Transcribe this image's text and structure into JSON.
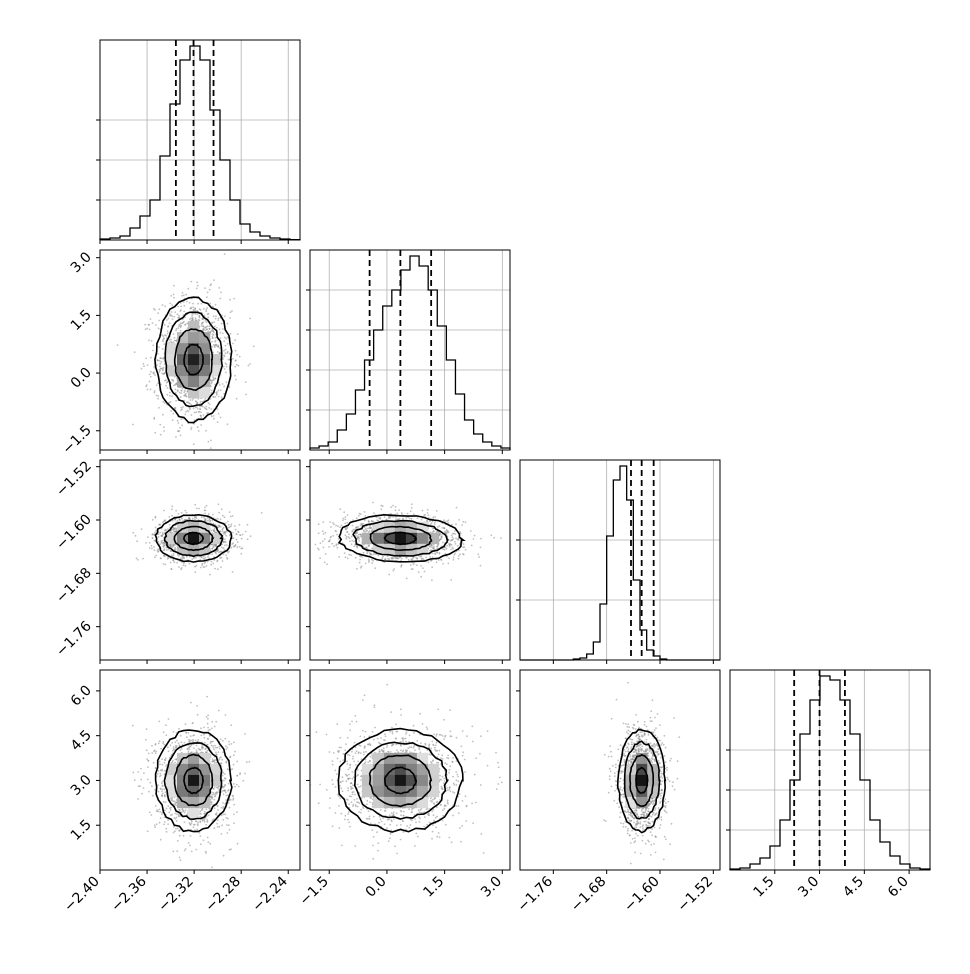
{
  "chart_data": {
    "type": "corner",
    "parameters": [
      {
        "index": 0,
        "range": [
          -2.4,
          -2.23
        ],
        "ticks": [
          -2.4,
          -2.36,
          -2.32,
          -2.28,
          -2.24
        ],
        "tick_labels": [
          "−2.40",
          "−2.36",
          "−2.32",
          "−2.28",
          "−2.24"
        ],
        "quantiles": [
          -2.3355,
          -2.3205,
          -2.3035
        ],
        "hist": [
          0.5,
          1,
          2,
          6,
          12,
          20,
          42,
          68,
          90,
          97,
          90,
          65,
          40,
          20,
          8,
          4,
          2,
          1,
          0.5,
          0.2
        ],
        "hist_ticks": [
          20,
          40,
          60
        ]
      },
      {
        "index": 1,
        "range": [
          -2.0,
          3.2
        ],
        "ticks": [
          -1.5,
          0.0,
          1.5,
          3.0
        ],
        "tick_labels": [
          "−1.5",
          "0.0",
          "1.5",
          "3.0"
        ],
        "quantiles": [
          -0.45,
          0.35,
          1.15
        ],
        "hist": [
          1,
          2,
          4,
          10,
          18,
          30,
          45,
          60,
          72,
          80,
          90,
          97,
          92,
          80,
          62,
          45,
          28,
          15,
          8,
          4,
          2,
          1
        ],
        "hist_ticks": [
          20,
          40,
          60,
          80
        ]
      },
      {
        "index": 2,
        "range": [
          -1.81,
          -1.51
        ],
        "ticks": [
          -1.76,
          -1.68,
          -1.6,
          -1.52
        ],
        "tick_labels": [
          "−1.76",
          "−1.68",
          "−1.60",
          "−1.52"
        ],
        "quantiles": [
          -1.6435,
          -1.6275,
          -1.6095
        ],
        "hist": [
          0,
          0,
          0,
          0,
          0,
          0,
          0,
          0,
          0.5,
          1,
          3,
          9,
          28,
          62,
          90,
          97,
          80,
          40,
          15,
          5,
          2,
          0.5,
          0,
          0,
          0,
          0,
          0,
          0,
          0,
          0
        ],
        "hist_ticks": [
          30,
          60
        ]
      },
      {
        "index": 3,
        "range": [
          0.0,
          6.7
        ],
        "ticks": [
          1.5,
          3.0,
          4.5,
          6.0
        ],
        "tick_labels": [
          "1.5",
          "3.0",
          "4.5",
          "6.0"
        ],
        "quantiles": [
          2.15,
          3.0,
          3.85
        ],
        "hist": [
          0.5,
          1,
          3,
          6,
          12,
          25,
          45,
          68,
          85,
          97,
          95,
          85,
          68,
          45,
          25,
          14,
          7,
          3,
          1,
          0.5
        ],
        "hist_ticks": [
          20,
          40,
          60
        ]
      }
    ],
    "pairs": [
      {
        "x": 0,
        "y": 1,
        "mean": [
          -2.3205,
          0.35
        ],
        "sigma": [
          0.016,
          0.8
        ],
        "rho": 0.0
      },
      {
        "x": 0,
        "y": 2,
        "mean": [
          -2.3205,
          -1.6275
        ],
        "sigma": [
          0.016,
          0.0175
        ],
        "rho": 0.0
      },
      {
        "x": 1,
        "y": 2,
        "mean": [
          0.35,
          -1.6275
        ],
        "sigma": [
          0.8,
          0.0175
        ],
        "rho": -0.1
      },
      {
        "x": 0,
        "y": 3,
        "mean": [
          -2.3205,
          3.0
        ],
        "sigma": [
          0.016,
          0.85
        ],
        "rho": 0.0
      },
      {
        "x": 1,
        "y": 3,
        "mean": [
          0.35,
          3.0
        ],
        "sigma": [
          0.8,
          0.85
        ],
        "rho": 0.0
      },
      {
        "x": 2,
        "y": 3,
        "mean": [
          -1.6275,
          3.0
        ],
        "sigma": [
          0.0175,
          0.85
        ],
        "rho": 0.0
      }
    ],
    "contour_levels": [
      0.5,
      1.0,
      1.5,
      2.0
    ],
    "grid": true,
    "colors": {
      "line": "#000000",
      "points": "#8c8c8c",
      "grid": "#b0b0b0"
    }
  }
}
